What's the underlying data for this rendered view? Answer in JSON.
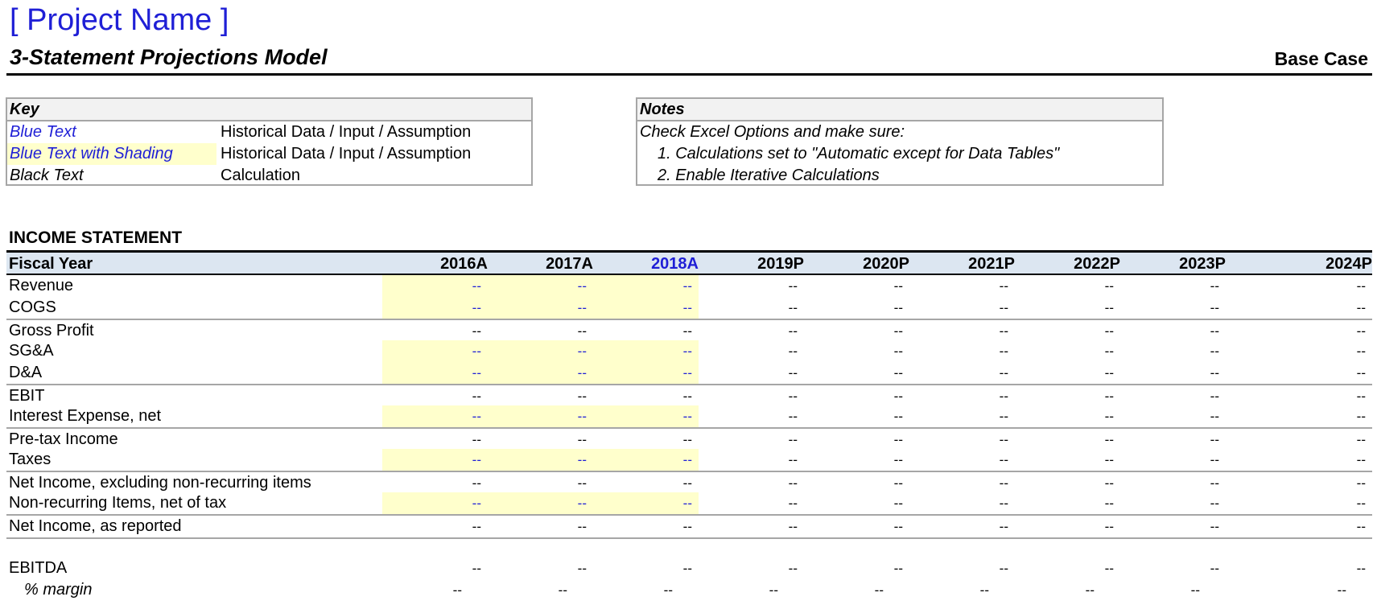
{
  "header": {
    "project_name": "[ Project Name ]",
    "model_title": "3-Statement Projections Model",
    "case": "Base Case"
  },
  "key": {
    "title": "Key",
    "rows": [
      {
        "sample": "Blue Text",
        "desc": "Historical Data / Input / Assumption"
      },
      {
        "sample": "Blue Text with Shading",
        "desc": "Historical Data / Input / Assumption"
      },
      {
        "sample": "Black Text",
        "desc": "Calculation"
      }
    ]
  },
  "notes": {
    "title": "Notes",
    "intro": "Check Excel Options and make sure:",
    "items": [
      "1.  Calculations set to \"Automatic except for Data Tables\"",
      "2.  Enable Iterative Calculations"
    ]
  },
  "income_statement": {
    "title": "INCOME STATEMENT",
    "fiscal_year_label": "Fiscal Year",
    "years": [
      "2016A",
      "2017A",
      "2018A",
      "2019P",
      "2020P",
      "2021P",
      "2022P",
      "2023P",
      "2024P"
    ],
    "rows": [
      {
        "label": "Revenue",
        "input": true,
        "sep": false,
        "values": [
          "--",
          "--",
          "--",
          "--",
          "--",
          "--",
          "--",
          "--",
          "--"
        ]
      },
      {
        "label": "COGS",
        "input": true,
        "sep": false,
        "values": [
          "--",
          "--",
          "--",
          "--",
          "--",
          "--",
          "--",
          "--",
          "--"
        ]
      },
      {
        "label": "Gross Profit",
        "input": false,
        "sep": true,
        "values": [
          "--",
          "--",
          "--",
          "--",
          "--",
          "--",
          "--",
          "--",
          "--"
        ]
      },
      {
        "label": "SG&A",
        "input": true,
        "sep": false,
        "values": [
          "--",
          "--",
          "--",
          "--",
          "--",
          "--",
          "--",
          "--",
          "--"
        ]
      },
      {
        "label": "D&A",
        "input": true,
        "sep": false,
        "values": [
          "--",
          "--",
          "--",
          "--",
          "--",
          "--",
          "--",
          "--",
          "--"
        ]
      },
      {
        "label": "EBIT",
        "input": false,
        "sep": true,
        "values": [
          "--",
          "--",
          "--",
          "--",
          "--",
          "--",
          "--",
          "--",
          "--"
        ]
      },
      {
        "label": "Interest Expense, net",
        "input": true,
        "sep": false,
        "values": [
          "--",
          "--",
          "--",
          "--",
          "--",
          "--",
          "--",
          "--",
          "--"
        ]
      },
      {
        "label": "Pre-tax Income",
        "input": false,
        "sep": true,
        "values": [
          "--",
          "--",
          "--",
          "--",
          "--",
          "--",
          "--",
          "--",
          "--"
        ]
      },
      {
        "label": "Taxes",
        "input": true,
        "sep": false,
        "values": [
          "--",
          "--",
          "--",
          "--",
          "--",
          "--",
          "--",
          "--",
          "--"
        ]
      },
      {
        "label": "Net Income, excluding non-recurring items",
        "input": false,
        "sep": true,
        "values": [
          "--",
          "--",
          "--",
          "--",
          "--",
          "--",
          "--",
          "--",
          "--"
        ]
      },
      {
        "label": "Non-recurring Items, net of tax",
        "input": true,
        "sep": false,
        "values": [
          "--",
          "--",
          "--",
          "--",
          "--",
          "--",
          "--",
          "--",
          "--"
        ]
      },
      {
        "label": "Net Income, as reported",
        "input": false,
        "sep": true,
        "values": [
          "--",
          "--",
          "--",
          "--",
          "--",
          "--",
          "--",
          "--",
          "--"
        ]
      }
    ],
    "ebitda_label": "EBITDA",
    "ebitda_values": [
      "--",
      "--",
      "--",
      "--",
      "--",
      "--",
      "--",
      "--",
      "--"
    ],
    "margin_label": "% margin",
    "margin_values": [
      "--",
      "--",
      "--",
      "--",
      "--",
      "--",
      "--",
      "--",
      "--"
    ]
  },
  "colors": {
    "input_blue": "#1f1fd6",
    "input_shading": "#ffffcc",
    "header_fill": "#dce6f1"
  }
}
